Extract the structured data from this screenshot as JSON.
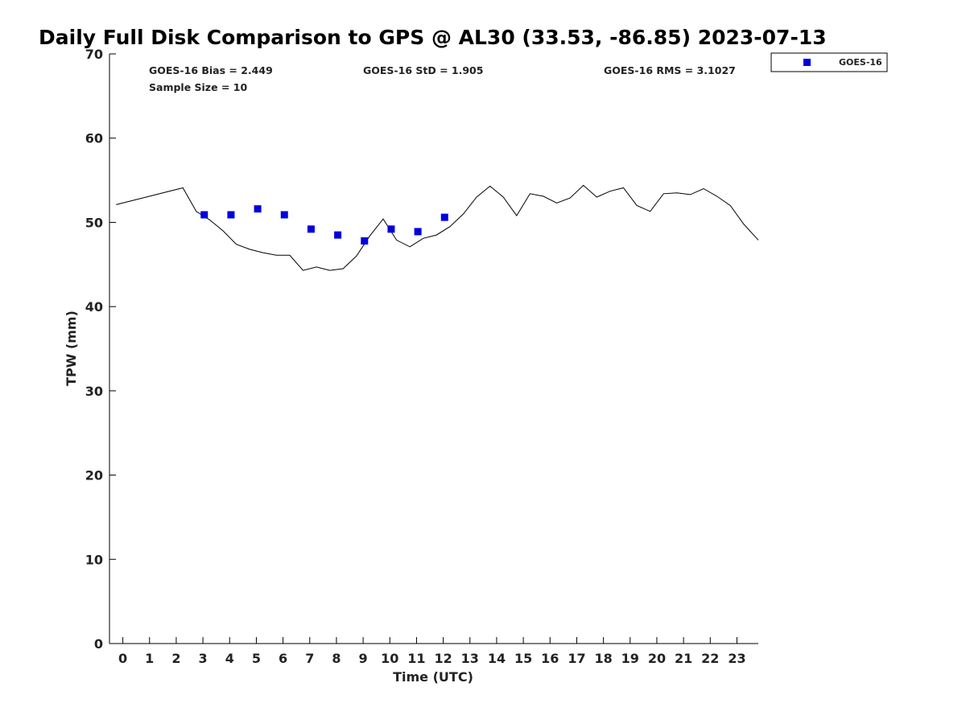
{
  "chart_data": {
    "type": "line",
    "title": "Daily Full Disk Comparison to GPS @ AL30 (33.53, -86.85) 2023-07-13",
    "xlabel": "Time (UTC)",
    "ylabel": "TPW (mm)",
    "xlim": [
      -0.5,
      23.8
    ],
    "ylim": [
      0,
      70
    ],
    "x_ticks": [
      0,
      1,
      2,
      3,
      4,
      5,
      6,
      7,
      8,
      9,
      10,
      11,
      12,
      13,
      14,
      15,
      16,
      17,
      18,
      19,
      20,
      21,
      22,
      23
    ],
    "y_ticks": [
      0,
      10,
      20,
      30,
      40,
      50,
      60,
      70
    ],
    "grid": false,
    "legend_position": "top-right",
    "legend": [
      {
        "label": "GOES-16",
        "marker": "square",
        "color": "#0000dd"
      }
    ],
    "stats": {
      "bias": "GOES-16 Bias = 2.449",
      "std": "GOES-16 StD = 1.905",
      "rms": "GOES-16 RMS = 3.1027",
      "sample": "Sample Size = 10"
    },
    "gps_line": {
      "color": "#000000",
      "x": [
        -0.25,
        2.25,
        2.75,
        3.25,
        3.75,
        4.25,
        4.75,
        5.25,
        5.75,
        6.25,
        6.75,
        7.25,
        7.75,
        8.25,
        8.75,
        9.25,
        9.75,
        10.25,
        10.75,
        11.25,
        11.75,
        12.25,
        12.75,
        13.25,
        13.75,
        14.25,
        14.75,
        15.25,
        15.75,
        16.25,
        16.75,
        17.25,
        17.75,
        18.25,
        18.75,
        19.25,
        19.75,
        20.25,
        20.75,
        21.25,
        21.75,
        22.25,
        22.75,
        23.25,
        23.8
      ],
      "y": [
        52.1,
        54.1,
        51.3,
        50.3,
        49.0,
        47.4,
        46.8,
        46.4,
        46.1,
        46.1,
        44.3,
        44.7,
        44.3,
        44.5,
        46.0,
        48.4,
        50.4,
        47.9,
        47.1,
        48.1,
        48.5,
        49.5,
        51.0,
        53.0,
        54.3,
        53.0,
        50.8,
        53.4,
        53.1,
        52.3,
        52.9,
        54.4,
        53.0,
        53.7,
        54.1,
        52.0,
        51.3,
        53.4,
        53.5,
        53.3,
        54.0,
        53.1,
        52.0,
        49.8,
        47.9
      ]
    },
    "series": [
      {
        "name": "GOES-16",
        "color": "#0000dd",
        "x": [
          3.05,
          4.05,
          5.05,
          6.05,
          7.05,
          8.05,
          9.05,
          10.05,
          11.05,
          12.05
        ],
        "y": [
          50.9,
          50.9,
          51.6,
          50.9,
          49.2,
          48.5,
          47.8,
          49.2,
          48.9,
          50.6
        ]
      }
    ]
  }
}
